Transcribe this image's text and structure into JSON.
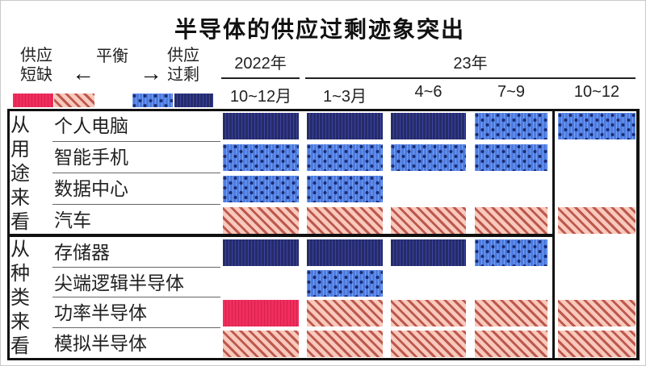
{
  "title": "半导体的供应过剩迹象突出",
  "legend": {
    "shortage_line1": "供应",
    "shortage_line2": "短缺",
    "balance": "平衡",
    "surplus_line1": "供应",
    "surplus_line2": "过剩",
    "left_arrow": "←",
    "right_arrow": "→",
    "swatches": [
      {
        "name": "shortage-strong",
        "state": "shortage_strong"
      },
      {
        "name": "shortage-mild",
        "state": "shortage_mild"
      },
      {
        "name": "surplus-mild",
        "state": "surplus"
      },
      {
        "name": "surplus-strong",
        "state": "surplus_strong"
      }
    ]
  },
  "colors": {
    "shortage_strong": "#f02e5d",
    "shortage_mild_bg": "#f9c9bd",
    "shortage_mild_stripe": "#bd594d",
    "surplus_bg": "#4d7be0",
    "surplus_dot": "#1b2d74",
    "surplus_strong": "#262b69",
    "border": "#111111"
  },
  "chart_data": {
    "type": "heatmap",
    "title": "半导体的供应过剩迹象突出",
    "year_headers": [
      {
        "label": "2022年",
        "columns": [
          0,
          0
        ]
      },
      {
        "label": "23年",
        "columns": [
          1,
          4
        ]
      }
    ],
    "columns": [
      "10~12月",
      "1~3月",
      "4~6",
      "7~9",
      "10~12"
    ],
    "forecast_column_index": 4,
    "states_meaning": {
      "shortage_strong": "供应短缺(深)",
      "shortage_mild": "供应短缺(浅)",
      "balance": "平衡",
      "surplus": "供应过剩(浅)",
      "surplus_strong": "供应过剩(深)"
    },
    "groups": [
      {
        "label": "从用途来看",
        "rows": [
          {
            "label": "个人电脑",
            "states": [
              "surplus_strong",
              "surplus_strong",
              "surplus_strong",
              "surplus",
              "surplus"
            ]
          },
          {
            "label": "智能手机",
            "states": [
              "surplus",
              "surplus",
              "surplus",
              "surplus",
              "balance"
            ]
          },
          {
            "label": "数据中心",
            "states": [
              "surplus",
              "surplus",
              "balance",
              "balance",
              "balance"
            ]
          },
          {
            "label": "汽车",
            "states": [
              "shortage_mild",
              "shortage_mild",
              "shortage_mild",
              "shortage_mild",
              "shortage_mild"
            ]
          }
        ]
      },
      {
        "label": "从种类来看",
        "rows": [
          {
            "label": "存储器",
            "states": [
              "surplus_strong",
              "surplus_strong",
              "surplus_strong",
              "surplus",
              "balance"
            ]
          },
          {
            "label": "尖端逻辑半导体",
            "states": [
              "balance",
              "surplus",
              "balance",
              "balance",
              "balance"
            ]
          },
          {
            "label": "功率半导体",
            "states": [
              "shortage_strong",
              "shortage_mild",
              "shortage_mild",
              "shortage_mild",
              "shortage_mild"
            ]
          },
          {
            "label": "模拟半导体",
            "states": [
              "shortage_mild",
              "shortage_mild",
              "shortage_mild",
              "shortage_mild",
              "shortage_mild"
            ]
          }
        ]
      }
    ]
  }
}
